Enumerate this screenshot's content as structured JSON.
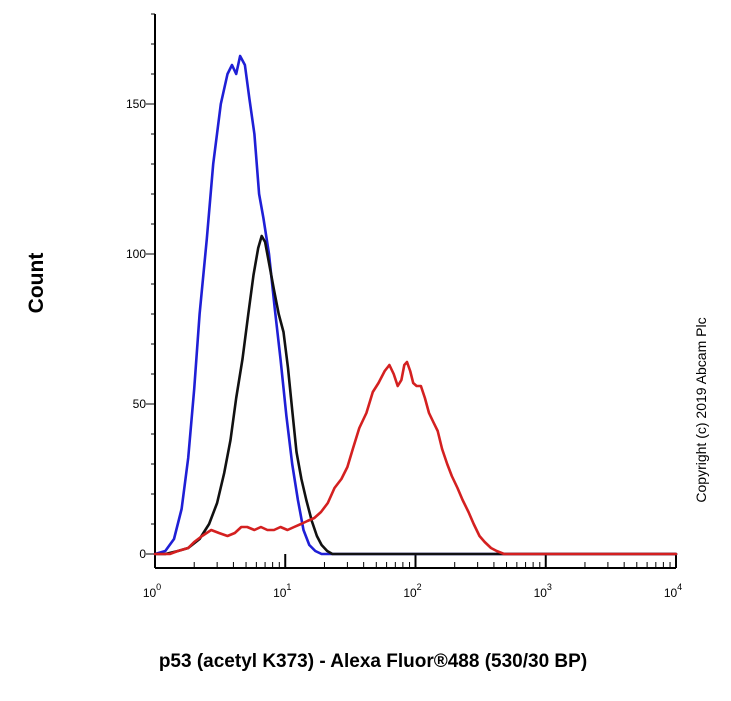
{
  "chart_data": {
    "type": "line",
    "xlabel": "p53 (acetyl K373) - Alexa Fluor®488 (530/30 BP)",
    "ylabel": "Count",
    "xscale": "log",
    "xlim": [
      1,
      10000
    ],
    "ylim": [
      0,
      180
    ],
    "grid": false,
    "legend": "none",
    "x_ticks": [
      {
        "value": 1,
        "base": "10",
        "exp": "0"
      },
      {
        "value": 10,
        "base": "10",
        "exp": "1"
      },
      {
        "value": 100,
        "base": "10",
        "exp": "2"
      },
      {
        "value": 1000,
        "base": "10",
        "exp": "3"
      },
      {
        "value": 10000,
        "base": "10",
        "exp": "4"
      }
    ],
    "y_ticks": [
      {
        "value": 0,
        "label": "0"
      },
      {
        "value": 50,
        "label": "50"
      },
      {
        "value": 100,
        "label": "100"
      },
      {
        "value": 150,
        "label": "150"
      }
    ],
    "series": [
      {
        "color": "#1f1fd6",
        "points": [
          [
            1.0,
            0
          ],
          [
            1.2,
            1
          ],
          [
            1.4,
            5
          ],
          [
            1.6,
            15
          ],
          [
            1.8,
            32
          ],
          [
            2.0,
            55
          ],
          [
            2.2,
            80
          ],
          [
            2.5,
            105
          ],
          [
            2.8,
            130
          ],
          [
            3.2,
            150
          ],
          [
            3.6,
            160
          ],
          [
            3.9,
            163
          ],
          [
            4.2,
            160
          ],
          [
            4.5,
            166
          ],
          [
            4.9,
            163
          ],
          [
            5.3,
            152
          ],
          [
            5.8,
            140
          ],
          [
            6.3,
            120
          ],
          [
            6.8,
            112
          ],
          [
            7.5,
            100
          ],
          [
            8.3,
            82
          ],
          [
            9.2,
            65
          ],
          [
            10.2,
            46
          ],
          [
            11.3,
            30
          ],
          [
            12.5,
            18
          ],
          [
            13.8,
            8
          ],
          [
            15.3,
            3
          ],
          [
            17.0,
            1
          ],
          [
            19,
            0
          ],
          [
            100,
            0
          ],
          [
            10000,
            0
          ]
        ]
      },
      {
        "color": "#111111",
        "points": [
          [
            1.0,
            0
          ],
          [
            1.2,
            0
          ],
          [
            1.5,
            1
          ],
          [
            1.8,
            2
          ],
          [
            2.2,
            5
          ],
          [
            2.6,
            10
          ],
          [
            3.0,
            17
          ],
          [
            3.4,
            27
          ],
          [
            3.8,
            38
          ],
          [
            4.2,
            52
          ],
          [
            4.7,
            65
          ],
          [
            5.2,
            80
          ],
          [
            5.7,
            93
          ],
          [
            6.2,
            102
          ],
          [
            6.6,
            106
          ],
          [
            7.0,
            104
          ],
          [
            7.5,
            97
          ],
          [
            8.2,
            88
          ],
          [
            8.9,
            80
          ],
          [
            9.7,
            74
          ],
          [
            10.5,
            62
          ],
          [
            11.3,
            48
          ],
          [
            12.2,
            34
          ],
          [
            13.3,
            25
          ],
          [
            14.5,
            18
          ],
          [
            16.0,
            11
          ],
          [
            17.5,
            6
          ],
          [
            19.0,
            3
          ],
          [
            21,
            1
          ],
          [
            23,
            0
          ],
          [
            100,
            0
          ],
          [
            10000,
            0
          ]
        ]
      },
      {
        "color": "#d42020",
        "points": [
          [
            1.0,
            0
          ],
          [
            1.3,
            0
          ],
          [
            1.5,
            1
          ],
          [
            1.8,
            2
          ],
          [
            2.0,
            4
          ],
          [
            2.3,
            6
          ],
          [
            2.7,
            8
          ],
          [
            3.1,
            7
          ],
          [
            3.6,
            6
          ],
          [
            4.1,
            7
          ],
          [
            4.6,
            9
          ],
          [
            5.1,
            9
          ],
          [
            5.8,
            8
          ],
          [
            6.5,
            9
          ],
          [
            7.3,
            8
          ],
          [
            8.2,
            8
          ],
          [
            9.2,
            9
          ],
          [
            10.4,
            8
          ],
          [
            11.7,
            9
          ],
          [
            13.2,
            10
          ],
          [
            14.8,
            11
          ],
          [
            16.7,
            12
          ],
          [
            18.8,
            14
          ],
          [
            21.2,
            17
          ],
          [
            23.9,
            22
          ],
          [
            27,
            25
          ],
          [
            30,
            29
          ],
          [
            33,
            35
          ],
          [
            37,
            42
          ],
          [
            42,
            47
          ],
          [
            47,
            54
          ],
          [
            52,
            57
          ],
          [
            58,
            61
          ],
          [
            63,
            63
          ],
          [
            68,
            60
          ],
          [
            73,
            56
          ],
          [
            78,
            58
          ],
          [
            82,
            63
          ],
          [
            86,
            64
          ],
          [
            91,
            61
          ],
          [
            96,
            57
          ],
          [
            102,
            56
          ],
          [
            110,
            56
          ],
          [
            118,
            52
          ],
          [
            127,
            47
          ],
          [
            137,
            44
          ],
          [
            148,
            41
          ],
          [
            160,
            35
          ],
          [
            175,
            30
          ],
          [
            190,
            26
          ],
          [
            210,
            22
          ],
          [
            230,
            18
          ],
          [
            255,
            14
          ],
          [
            280,
            10
          ],
          [
            310,
            6
          ],
          [
            340,
            4
          ],
          [
            380,
            2
          ],
          [
            420,
            1
          ],
          [
            480,
            0
          ],
          [
            600,
            0
          ],
          [
            10000,
            0
          ]
        ]
      }
    ]
  },
  "copyright": "Copyright (c) 2019 Abcam Plc",
  "style": {
    "axis_color": "#000000"
  }
}
